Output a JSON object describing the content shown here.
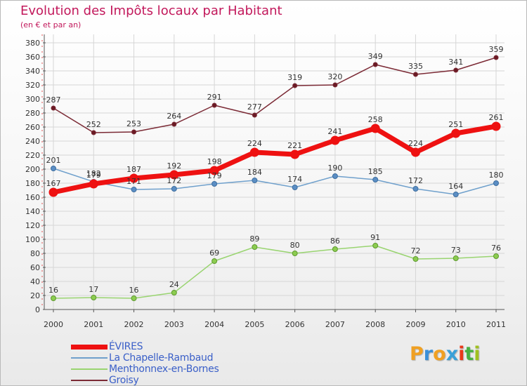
{
  "chart_data": {
    "type": "line",
    "title": "Evolution des Impôts locaux par Habitant",
    "subtitle": "(en € et par an)",
    "xlabel": "",
    "ylabel": "",
    "ylim": [
      0,
      380
    ],
    "ytick_step": 20,
    "grid": true,
    "categories": [
      "2000",
      "2001",
      "2002",
      "2003",
      "2004",
      "2005",
      "2006",
      "2007",
      "2008",
      "2009",
      "2010",
      "2011"
    ],
    "series": [
      {
        "name": "Groisy",
        "color": "#7b2a35",
        "values": [
          287,
          252,
          253,
          264,
          291,
          277,
          319,
          320,
          349,
          335,
          341,
          359
        ]
      },
      {
        "name": "Menthonnex-en-Bornes",
        "color": "#99d470",
        "values": [
          16,
          17,
          16,
          24,
          69,
          89,
          80,
          86,
          91,
          72,
          73,
          76
        ]
      },
      {
        "name": "La Chapelle-Rambaud",
        "color": "#6fa0cc",
        "values": [
          201,
          182,
          171,
          172,
          179,
          184,
          174,
          190,
          185,
          172,
          164,
          180
        ]
      },
      {
        "name": "ÉVIRES",
        "color": "#ee1111",
        "values": [
          167,
          179,
          187,
          192,
          198,
          224,
          221,
          241,
          258,
          224,
          251,
          261
        ]
      }
    ],
    "legend": [
      "ÉVIRES",
      "La Chapelle-Rambaud",
      "Menthonnex-en-Bornes",
      "Groisy"
    ],
    "legend_position": "bottom-left"
  },
  "logo": {
    "letters": [
      "P",
      "r",
      "o",
      "x",
      "i",
      "t",
      "i"
    ],
    "colors": [
      "#f0a022",
      "#3a8fd8",
      "#f0a022",
      "#3aa0d8",
      "#e83a1a",
      "#48b040",
      "#a0c020"
    ]
  }
}
